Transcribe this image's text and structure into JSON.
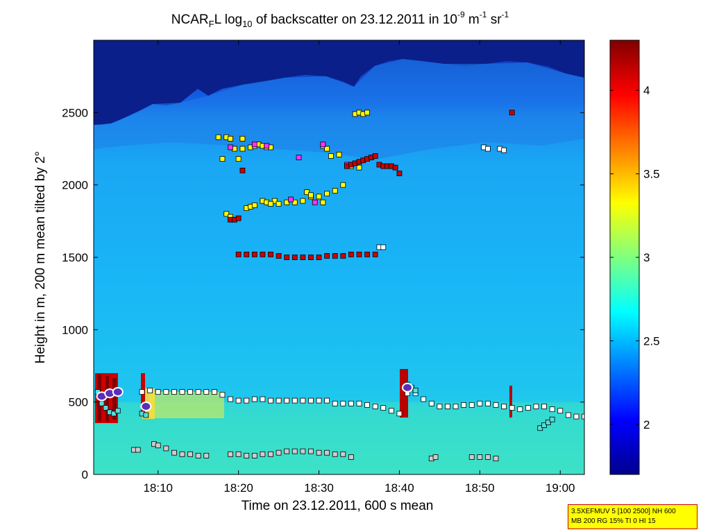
{
  "title": {
    "part1": "NCAR",
    "sub1": "F",
    "part2": "L log",
    "sub2": "10",
    "part3": " of backscatter on 23.12.2011 in 10",
    "sup1": "-9",
    "part4": " m",
    "sup2": "-1",
    "part5": " sr",
    "sup3": "-1"
  },
  "info_box": {
    "line1": "3.5XEFMUV 5 [100 2500] NH 600",
    "line2": "MB 200 RG 15% TI 0 HI 15"
  },
  "chart_data": {
    "type": "heatmap",
    "xlabel": "Time on 23.12.2011, 600 s mean",
    "ylabel": "Height in m, 200 m mean tilted by 2°",
    "xlim_minutes": [
      1082,
      1143
    ],
    "ylim": [
      0,
      3000
    ],
    "x_ticks": [
      {
        "label": "18:10",
        "minute": 1090
      },
      {
        "label": "18:20",
        "minute": 1100
      },
      {
        "label": "18:30",
        "minute": 1110
      },
      {
        "label": "18:40",
        "minute": 1120
      },
      {
        "label": "18:50",
        "minute": 1130
      },
      {
        "label": "19:00",
        "minute": 1140
      }
    ],
    "y_ticks": [
      0,
      500,
      1000,
      1500,
      2000,
      2500
    ],
    "colorbar": {
      "range": [
        1.7,
        4.3
      ],
      "ticks": [
        "2",
        "2.5",
        "3",
        "3.5",
        "4"
      ],
      "tick_values": [
        2,
        2.5,
        3,
        3.5,
        4
      ]
    },
    "layer_markers": [
      {
        "name": "cloud-top-white-high",
        "color": "#ffffff",
        "points": [
          [
            1130.5,
            2260
          ],
          [
            1131,
            2250
          ],
          [
            1132.5,
            2250
          ],
          [
            1133,
            2240
          ]
        ]
      },
      {
        "name": "cloud-base-white-low",
        "color": "#ffffff",
        "points": [
          [
            1117.5,
            1570
          ],
          [
            1118,
            1570
          ]
        ]
      },
      {
        "name": "yellow-top",
        "color": "#ffff00",
        "points": [
          [
            1097.5,
            2330
          ],
          [
            1098.5,
            2330
          ],
          [
            1099,
            2320
          ],
          [
            1100.5,
            2320
          ],
          [
            1099.5,
            2250
          ],
          [
            1100.5,
            2250
          ],
          [
            1101.5,
            2260
          ],
          [
            1102,
            2270
          ],
          [
            1102.5,
            2280
          ],
          [
            1103,
            2270
          ],
          [
            1103.5,
            2260
          ],
          [
            1104,
            2260
          ],
          [
            1098,
            2180
          ],
          [
            1100,
            2180
          ],
          [
            1106,
            1880
          ],
          [
            1107,
            1880
          ],
          [
            1108,
            1890
          ],
          [
            1109,
            1920
          ],
          [
            1110,
            1920
          ],
          [
            1110.5,
            1880
          ],
          [
            1111,
            1940
          ],
          [
            1112,
            1960
          ],
          [
            1113,
            2000
          ],
          [
            1112.5,
            2210
          ],
          [
            1111.5,
            2200
          ],
          [
            1110.5,
            2270
          ],
          [
            1111,
            2250
          ],
          [
            1104.5,
            1890
          ],
          [
            1105,
            1870
          ],
          [
            1108.5,
            1950
          ],
          [
            1109,
            1930
          ],
          [
            1098.5,
            1800
          ],
          [
            1099,
            1780
          ],
          [
            1101,
            1840
          ],
          [
            1101.5,
            1850
          ],
          [
            1102,
            1860
          ],
          [
            1103,
            1890
          ],
          [
            1103.5,
            1880
          ],
          [
            1104,
            1870
          ],
          [
            1113.5,
            2130
          ],
          [
            1114,
            2130
          ],
          [
            1115,
            2120
          ],
          [
            1114.5,
            2490
          ],
          [
            1115,
            2500
          ],
          [
            1115.5,
            2490
          ],
          [
            1116,
            2500
          ]
        ]
      },
      {
        "name": "magenta-top",
        "color": "#ff33ff",
        "points": [
          [
            1099,
            2260
          ],
          [
            1102,
            2280
          ],
          [
            1103.5,
            2270
          ],
          [
            1107.5,
            2190
          ],
          [
            1109.5,
            1880
          ],
          [
            1110.5,
            2280
          ],
          [
            1106.5,
            1900
          ],
          [
            1113.5,
            2140
          ]
        ]
      },
      {
        "name": "red-upper",
        "color": "#cc0000",
        "points": [
          [
            1099,
            1760
          ],
          [
            1099.5,
            1760
          ],
          [
            1100,
            1770
          ],
          [
            1100.5,
            2100
          ],
          [
            1113.5,
            2130
          ],
          [
            1114,
            2140
          ],
          [
            1114.5,
            2150
          ],
          [
            1115,
            2160
          ],
          [
            1115.5,
            2170
          ],
          [
            1116,
            2180
          ],
          [
            1116.5,
            2190
          ],
          [
            1117,
            2200
          ],
          [
            1117.5,
            2140
          ],
          [
            1118,
            2130
          ],
          [
            1118.5,
            2130
          ],
          [
            1119,
            2130
          ],
          [
            1119.5,
            2120
          ],
          [
            1120,
            2080
          ],
          [
            1134,
            2500
          ]
        ]
      },
      {
        "name": "red-1500",
        "color": "#cc0000",
        "points": [
          [
            1100,
            1520
          ],
          [
            1101,
            1520
          ],
          [
            1102,
            1520
          ],
          [
            1103,
            1520
          ],
          [
            1104,
            1520
          ],
          [
            1105,
            1510
          ],
          [
            1106,
            1500
          ],
          [
            1107,
            1500
          ],
          [
            1108,
            1500
          ],
          [
            1109,
            1500
          ],
          [
            1110,
            1500
          ],
          [
            1111,
            1510
          ],
          [
            1112,
            1510
          ],
          [
            1113,
            1510
          ],
          [
            1114,
            1520
          ],
          [
            1115,
            1520
          ],
          [
            1116,
            1520
          ],
          [
            1117,
            1520
          ]
        ]
      },
      {
        "name": "white-500",
        "color": "#ffffff",
        "points": [
          [
            1088,
            570
          ],
          [
            1089,
            580
          ],
          [
            1090,
            570
          ],
          [
            1091,
            570
          ],
          [
            1092,
            570
          ],
          [
            1093,
            570
          ],
          [
            1094,
            570
          ],
          [
            1095,
            570
          ],
          [
            1096,
            570
          ],
          [
            1097,
            570
          ],
          [
            1098,
            550
          ],
          [
            1099,
            520
          ],
          [
            1100,
            510
          ],
          [
            1101,
            510
          ],
          [
            1102,
            520
          ],
          [
            1103,
            520
          ],
          [
            1104,
            510
          ],
          [
            1105,
            510
          ],
          [
            1106,
            510
          ],
          [
            1107,
            510
          ],
          [
            1108,
            510
          ],
          [
            1109,
            510
          ],
          [
            1110,
            510
          ],
          [
            1111,
            510
          ],
          [
            1112,
            490
          ],
          [
            1113,
            490
          ],
          [
            1114,
            490
          ],
          [
            1115,
            490
          ],
          [
            1116,
            480
          ],
          [
            1117,
            470
          ],
          [
            1118,
            460
          ],
          [
            1119,
            440
          ],
          [
            1120,
            420
          ],
          [
            1121,
            560
          ],
          [
            1122,
            560
          ],
          [
            1123,
            520
          ],
          [
            1124,
            490
          ],
          [
            1125,
            470
          ],
          [
            1126,
            470
          ],
          [
            1127,
            470
          ],
          [
            1128,
            480
          ],
          [
            1129,
            480
          ],
          [
            1130,
            490
          ],
          [
            1131,
            490
          ],
          [
            1132,
            480
          ],
          [
            1133,
            470
          ],
          [
            1134,
            460
          ],
          [
            1135,
            450
          ],
          [
            1136,
            460
          ],
          [
            1137,
            470
          ],
          [
            1138,
            470
          ],
          [
            1139,
            450
          ],
          [
            1140,
            440
          ],
          [
            1141,
            410
          ],
          [
            1142,
            400
          ],
          [
            1143,
            400
          ]
        ]
      },
      {
        "name": "cyan-markers",
        "color": "#55dddd",
        "points": [
          [
            1082.5,
            570
          ],
          [
            1083,
            490
          ],
          [
            1083.5,
            460
          ],
          [
            1084,
            430
          ],
          [
            1084.5,
            420
          ],
          [
            1085,
            440
          ],
          [
            1088,
            420
          ],
          [
            1088.5,
            410
          ],
          [
            1121,
            620
          ],
          [
            1121.5,
            600
          ],
          [
            1122,
            580
          ],
          [
            1137.5,
            320
          ],
          [
            1138,
            340
          ],
          [
            1138.5,
            360
          ],
          [
            1139,
            380
          ]
        ]
      },
      {
        "name": "grey-low",
        "color": "#cccccc",
        "points": [
          [
            1087,
            170
          ],
          [
            1087.5,
            170
          ],
          [
            1089.5,
            210
          ],
          [
            1090,
            200
          ],
          [
            1091,
            180
          ],
          [
            1092,
            150
          ],
          [
            1093,
            140
          ],
          [
            1094,
            140
          ],
          [
            1095,
            130
          ],
          [
            1096,
            130
          ],
          [
            1099,
            140
          ],
          [
            1100,
            140
          ],
          [
            1101,
            130
          ],
          [
            1102,
            130
          ],
          [
            1103,
            140
          ],
          [
            1104,
            140
          ],
          [
            1105,
            150
          ],
          [
            1106,
            160
          ],
          [
            1107,
            160
          ],
          [
            1108,
            160
          ],
          [
            1109,
            160
          ],
          [
            1110,
            150
          ],
          [
            1111,
            150
          ],
          [
            1112,
            140
          ],
          [
            1113,
            140
          ],
          [
            1114,
            120
          ],
          [
            1124,
            110
          ],
          [
            1124.5,
            120
          ],
          [
            1129,
            120
          ],
          [
            1130,
            120
          ],
          [
            1131,
            120
          ],
          [
            1132,
            110
          ]
        ]
      }
    ],
    "overlay_circles": [
      {
        "minute": 1083,
        "height": 540
      },
      {
        "minute": 1084,
        "height": 560
      },
      {
        "minute": 1085,
        "height": 570
      },
      {
        "minute": 1088.5,
        "height": 470
      },
      {
        "minute": 1121,
        "height": 600
      }
    ]
  }
}
